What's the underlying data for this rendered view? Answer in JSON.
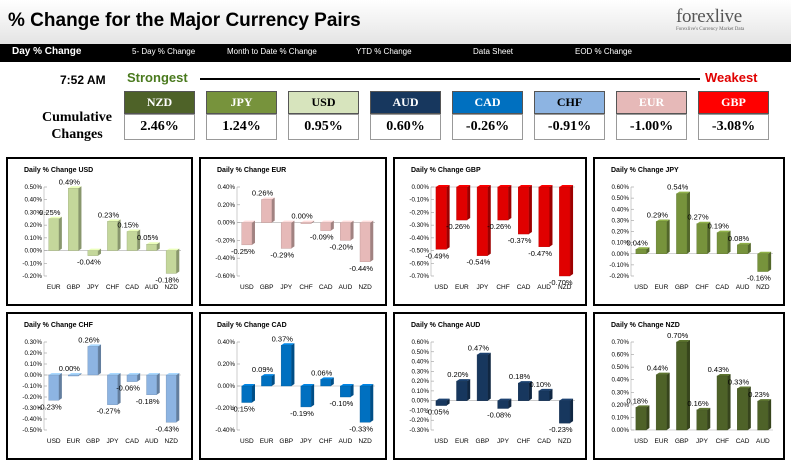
{
  "header": {
    "title": "% Change for the Major Currency Pairs",
    "logo_text": "forexlive",
    "logo_tagline": "Forexlive's Currency Market Data"
  },
  "nav": {
    "items": [
      {
        "label": "Day % Change",
        "active": true
      },
      {
        "label": "5- Day % Change"
      },
      {
        "label": "Month to Date % Change"
      },
      {
        "label": "YTD % Change"
      },
      {
        "label": "Data Sheet"
      },
      {
        "label": "EOD % Change"
      }
    ]
  },
  "summary": {
    "time": "7:52 AM",
    "strongest_label": "Strongest",
    "weakest_label": "Weakest",
    "cumulative_label_1": "Cumulative",
    "cumulative_label_2": "Changes",
    "currencies": [
      {
        "code": "NZD",
        "value": "2.46%",
        "color": "#4e6228",
        "text_color": "#ffffff"
      },
      {
        "code": "JPY",
        "value": "1.24%",
        "color": "#77933c",
        "text_color": "#ffffff"
      },
      {
        "code": "USD",
        "value": "0.95%",
        "color": "#d7e4bd",
        "text_color": "#000000"
      },
      {
        "code": "AUD",
        "value": "0.60%",
        "color": "#17375e",
        "text_color": "#ffffff"
      },
      {
        "code": "CAD",
        "value": "-0.26%",
        "color": "#0070c0",
        "text_color": "#ffffff"
      },
      {
        "code": "CHF",
        "value": "-0.91%",
        "color": "#8db4e2",
        "text_color": "#000000"
      },
      {
        "code": "EUR",
        "value": "-1.00%",
        "color": "#e6b9b8",
        "text_color": "#ffffff"
      },
      {
        "code": "GBP",
        "value": "-3.08%",
        "color": "#ff0000",
        "text_color": "#ffffff"
      }
    ]
  },
  "chart_data": [
    {
      "type": "bar",
      "title": "Daily % Change USD",
      "categories": [
        "EUR",
        "GBP",
        "JPY",
        "CHF",
        "CAD",
        "AUD",
        "NZD"
      ],
      "values": [
        0.25,
        0.49,
        -0.04,
        0.23,
        0.15,
        0.05,
        -0.18
      ],
      "ylim": [
        -0.2,
        0.5
      ],
      "yticks": [
        "0.50%",
        "0.40%",
        "0.30%",
        "0.20%",
        "0.10%",
        "0.00%",
        "-0.10%",
        "-0.20%"
      ],
      "color": "#c4d79b"
    },
    {
      "type": "bar",
      "title": "Daily % Change EUR",
      "categories": [
        "USD",
        "GBP",
        "JPY",
        "CHF",
        "CAD",
        "AUD",
        "NZD"
      ],
      "values": [
        -0.25,
        0.26,
        -0.29,
        0.0,
        -0.09,
        -0.2,
        -0.44
      ],
      "ylim": [
        -0.6,
        0.4
      ],
      "yticks": [
        "0.40%",
        "0.20%",
        "0.00%",
        "-0.20%",
        "-0.40%",
        "-0.60%"
      ],
      "color": "#e6b9b8"
    },
    {
      "type": "bar",
      "title": "Daily % Change GBP",
      "categories": [
        "USD",
        "EUR",
        "JPY",
        "CHF",
        "CAD",
        "AUD",
        "NZD"
      ],
      "values": [
        -0.49,
        -0.26,
        -0.54,
        -0.26,
        -0.37,
        -0.47,
        -0.7
      ],
      "ylim": [
        -0.7,
        0.0
      ],
      "yticks": [
        "0.00%",
        "-0.10%",
        "-0.20%",
        "-0.30%",
        "-0.40%",
        "-0.50%",
        "-0.60%",
        "-0.70%"
      ],
      "color": "#e00000"
    },
    {
      "type": "bar",
      "title": "Daily % Change JPY",
      "categories": [
        "USD",
        "EUR",
        "GBP",
        "CHF",
        "CAD",
        "AUD",
        "NZD"
      ],
      "values": [
        0.04,
        0.29,
        0.54,
        0.27,
        0.19,
        0.08,
        -0.16
      ],
      "ylim": [
        -0.2,
        0.6
      ],
      "yticks": [
        "0.60%",
        "0.50%",
        "0.40%",
        "0.30%",
        "0.20%",
        "0.10%",
        "0.00%",
        "-0.10%",
        "-0.20%"
      ],
      "color": "#77933c"
    },
    {
      "type": "bar",
      "title": "Daily % Change CHF",
      "categories": [
        "USD",
        "EUR",
        "GBP",
        "JPY",
        "CAD",
        "AUD",
        "NZD"
      ],
      "values": [
        -0.23,
        0.0,
        0.26,
        -0.27,
        -0.06,
        -0.18,
        -0.43
      ],
      "ylim": [
        -0.5,
        0.3
      ],
      "yticks": [
        "0.30%",
        "0.20%",
        "0.10%",
        "0.00%",
        "-0.10%",
        "-0.20%",
        "-0.30%",
        "-0.40%",
        "-0.50%"
      ],
      "color": "#8db4e2"
    },
    {
      "type": "bar",
      "title": "Daily % Change CAD",
      "categories": [
        "USD",
        "EUR",
        "GBP",
        "JPY",
        "CHF",
        "AUD",
        "NZD"
      ],
      "values": [
        -0.15,
        0.09,
        0.37,
        -0.19,
        0.06,
        -0.1,
        -0.33
      ],
      "ylim": [
        -0.4,
        0.4
      ],
      "yticks": [
        "0.40%",
        "0.20%",
        "0.00%",
        "-0.20%",
        "-0.40%"
      ],
      "color": "#0070c0"
    },
    {
      "type": "bar",
      "title": "Daily % Change AUD",
      "categories": [
        "USD",
        "EUR",
        "GBP",
        "JPY",
        "CHF",
        "CAD",
        "NZD"
      ],
      "values": [
        -0.05,
        0.2,
        0.47,
        -0.08,
        0.18,
        0.1,
        -0.23
      ],
      "ylim": [
        -0.3,
        0.6
      ],
      "yticks": [
        "0.60%",
        "0.50%",
        "0.40%",
        "0.30%",
        "0.20%",
        "0.10%",
        "0.00%",
        "-0.10%",
        "-0.20%",
        "-0.30%"
      ],
      "color": "#17375e"
    },
    {
      "type": "bar",
      "title": "Daily % Change NZD",
      "categories": [
        "USD",
        "EUR",
        "GBP",
        "JPY",
        "CHF",
        "CAD",
        "AUD"
      ],
      "values": [
        0.18,
        0.44,
        0.7,
        0.16,
        0.43,
        0.33,
        0.23
      ],
      "ylim": [
        0.0,
        0.7
      ],
      "yticks": [
        "0.70%",
        "0.60%",
        "0.50%",
        "0.40%",
        "0.30%",
        "0.20%",
        "0.10%",
        "0.00%"
      ],
      "color": "#4e6228"
    }
  ]
}
